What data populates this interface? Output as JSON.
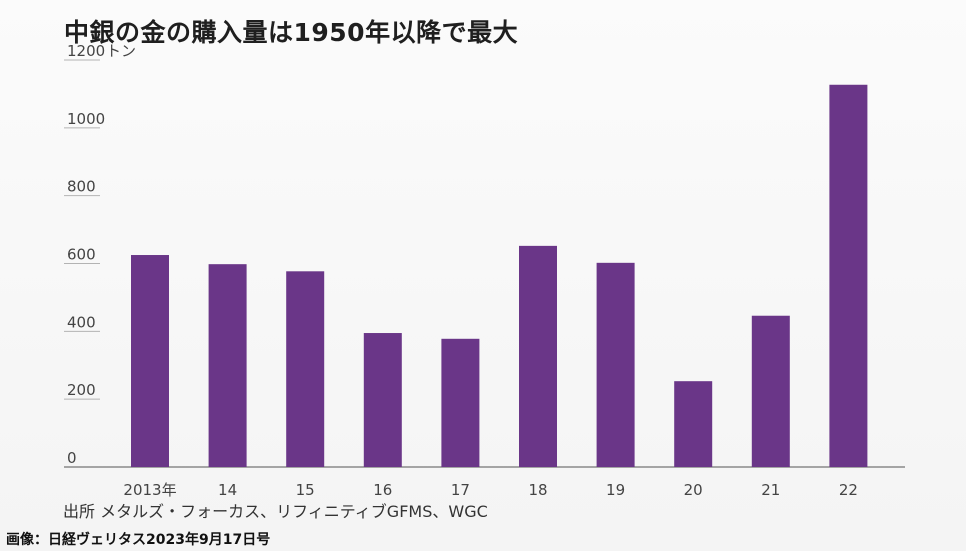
{
  "title": "中銀の金の購入量は1950年以降で最大",
  "source": "出所  メタルズ・フォーカス、リフィニティブGFMS、WGC",
  "caption": "画像：日経ヴェリタス2023年9月17日号",
  "colors": {
    "bar": "#6a3688",
    "grid": "#b3b3b3",
    "axis": "#8a8a8a",
    "text": "#444444"
  },
  "chart_data": {
    "type": "bar",
    "title": "中銀の金の購入量は1950年以降で最大",
    "ylabel": "トン",
    "categories": [
      "2013年",
      "14",
      "15",
      "16",
      "17",
      "18",
      "19",
      "20",
      "21",
      "22"
    ],
    "values": [
      625,
      598,
      577,
      395,
      378,
      652,
      602,
      253,
      446,
      1127
    ],
    "ylim": [
      0,
      1200
    ],
    "yticks": [
      "0",
      "200",
      "400",
      "600",
      "800",
      "1000",
      "1200"
    ],
    "grid": true
  }
}
